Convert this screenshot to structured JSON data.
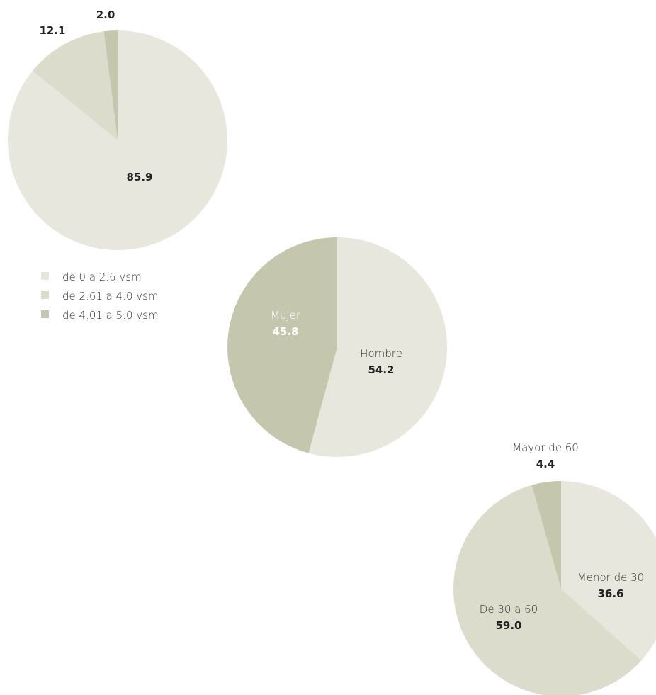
{
  "chart_data": [
    {
      "type": "pie",
      "title": "",
      "categories": [
        "de 0 a 2.6 vsm",
        "de 2.61 a 4.0 vsm",
        "de 4.01 a 5.0 vsm"
      ],
      "values": [
        85.9,
        12.1,
        2.0
      ],
      "value_labels": [
        "85.9",
        "12.1",
        "2.0"
      ],
      "colors": [
        "#e8e7de",
        "#dcdccd",
        "#c4c6ae"
      ],
      "legend": {
        "placement": "bottom-left",
        "items": [
          "de 0 a 2.6 vsm",
          "de 2.61 a 4.0 vsm",
          "de 4.01 a 5.0 vsm"
        ]
      }
    },
    {
      "type": "pie",
      "title": "",
      "categories": [
        "Hombre",
        "Mujer"
      ],
      "values": [
        54.2,
        45.8
      ],
      "value_labels": [
        "54.2",
        "45.8"
      ],
      "colors": [
        "#e8e7de",
        "#c4c6ae"
      ]
    },
    {
      "type": "pie",
      "title": "",
      "categories": [
        "Menor de 30",
        "De 30 a 60",
        "Mayor de 60"
      ],
      "values": [
        36.6,
        59.0,
        4.4
      ],
      "value_labels": [
        "36.6",
        "59.0",
        "4.4"
      ],
      "colors": [
        "#e8e7de",
        "#dcdccd",
        "#c4c6ae"
      ]
    }
  ],
  "colors": {
    "text_dark": "#222222",
    "text_light": "#ffffff",
    "text_label": "#333333"
  }
}
